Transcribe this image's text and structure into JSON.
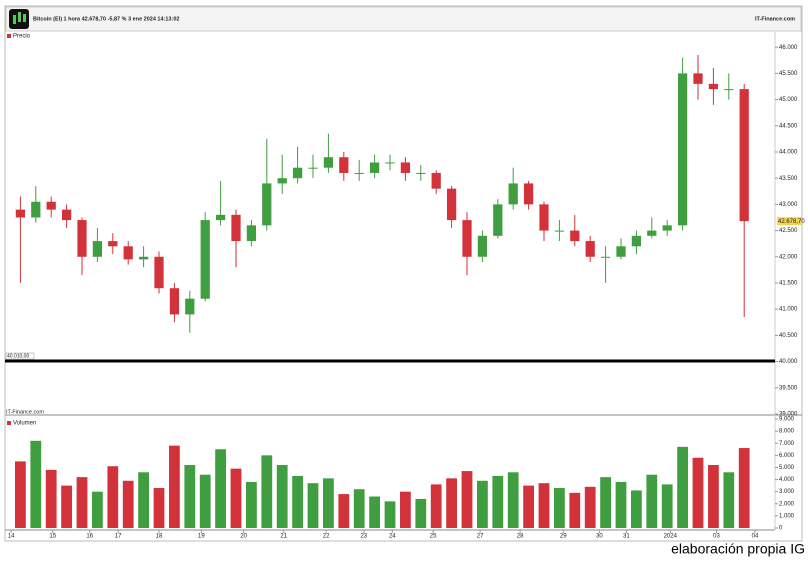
{
  "header": {
    "title": "Bitcoin (EI) 1 hora 42.678,70 -5,87 % 3 ene 2024 14:13:02",
    "source": "IT-Finance.com"
  },
  "chart_data": [
    {
      "type": "candlestick",
      "legend": "Precio",
      "up_color": "#3f9e3f",
      "down_color": "#d2323a",
      "x": [
        2,
        4,
        6,
        8,
        10,
        12,
        14,
        16,
        18,
        20,
        22,
        24,
        26,
        28,
        30,
        32,
        34,
        36,
        38,
        40,
        42,
        44,
        46,
        48,
        50,
        52,
        54,
        56,
        58,
        60,
        62,
        64,
        66,
        68,
        70,
        72,
        74,
        76,
        78,
        80,
        82,
        84,
        86,
        88,
        90,
        92,
        94,
        96
      ],
      "open": [
        42900,
        42750,
        43050,
        42900,
        42700,
        42000,
        42300,
        42200,
        41950,
        42000,
        41400,
        40900,
        41200,
        42700,
        42800,
        42300,
        42600,
        43400,
        43500,
        43700,
        43700,
        43900,
        43600,
        43600,
        43800,
        43800,
        43600,
        43600,
        43300,
        42700,
        42000,
        42400,
        43000,
        43400,
        43000,
        42500,
        42500,
        42300,
        42000,
        42000,
        42200,
        42400,
        42500,
        42600,
        45500,
        45300,
        45200,
        45200
      ],
      "high": [
        43150,
        43350,
        43150,
        43000,
        42750,
        42550,
        42450,
        42300,
        42200,
        42100,
        41500,
        41350,
        42850,
        43450,
        42900,
        42700,
        44250,
        43950,
        44100,
        43950,
        44350,
        44000,
        43850,
        43950,
        43950,
        43900,
        43750,
        43650,
        43350,
        42850,
        42500,
        43100,
        43700,
        43450,
        43050,
        42700,
        42800,
        42400,
        42200,
        42350,
        42500,
        42750,
        42700,
        45800,
        45850,
        45600,
        45500,
        45300
      ],
      "low": [
        41500,
        42650,
        42750,
        42550,
        41650,
        41900,
        42050,
        41850,
        41800,
        41300,
        40750,
        40550,
        41150,
        42600,
        41800,
        42200,
        42500,
        43200,
        43400,
        43500,
        43600,
        43450,
        43450,
        43500,
        43650,
        43450,
        43450,
        43200,
        42550,
        41650,
        41900,
        42350,
        42900,
        42900,
        42300,
        42300,
        42200,
        41900,
        41500,
        41950,
        42050,
        42350,
        42400,
        42500,
        45000,
        44900,
        45000,
        40850
      ],
      "close": [
        42750,
        43050,
        42900,
        42700,
        42000,
        42300,
        42200,
        41950,
        42000,
        41400,
        40900,
        41200,
        42700,
        42800,
        42300,
        42600,
        43400,
        43500,
        43700,
        43700,
        43900,
        43600,
        43600,
        43800,
        43800,
        43600,
        43600,
        43300,
        42700,
        42000,
        42400,
        43000,
        43400,
        43000,
        42500,
        42500,
        42300,
        42000,
        42000,
        42200,
        42400,
        42500,
        42600,
        45500,
        45300,
        45200,
        45200,
        42680
      ],
      "xlim": [
        0,
        100
      ],
      "xticks": [
        {
          "value": 0.8,
          "label": "14"
        },
        {
          "value": 6.2,
          "label": "15"
        },
        {
          "value": 11,
          "label": "16"
        },
        {
          "value": 14.7,
          "label": "17"
        },
        {
          "value": 20,
          "label": "18"
        },
        {
          "value": 25.5,
          "label": "19"
        },
        {
          "value": 31,
          "label": "20"
        },
        {
          "value": 36.2,
          "label": "21"
        },
        {
          "value": 41.7,
          "label": "22"
        },
        {
          "value": 46.6,
          "label": "23"
        },
        {
          "value": 50.3,
          "label": "24"
        },
        {
          "value": 55.6,
          "label": "25"
        },
        {
          "value": 61.7,
          "label": "27"
        },
        {
          "value": 66.9,
          "label": "28"
        },
        {
          "value": 72.5,
          "label": "29"
        },
        {
          "value": 77.2,
          "label": "30"
        },
        {
          "value": 80.7,
          "label": "31"
        },
        {
          "value": 86.4,
          "label": "2024"
        },
        {
          "value": 92.4,
          "label": "03"
        },
        {
          "value": 97.4,
          "label": "04"
        }
      ],
      "ylim": [
        38980,
        46290
      ],
      "yticks": [
        {
          "value": 39000,
          "label": "39.000"
        },
        {
          "value": 39500,
          "label": "39.500"
        },
        {
          "value": 40000,
          "label": "40.000"
        },
        {
          "value": 40500,
          "label": "40.500"
        },
        {
          "value": 41000,
          "label": "41.000"
        },
        {
          "value": 41500,
          "label": "41.500"
        },
        {
          "value": 42000,
          "label": "42.000"
        },
        {
          "value": 42500,
          "label": "42.500"
        },
        {
          "value": 43000,
          "label": "43.000"
        },
        {
          "value": 43500,
          "label": "43.500"
        },
        {
          "value": 44000,
          "label": "44.000"
        },
        {
          "value": 44500,
          "label": "44.500"
        },
        {
          "value": 45000,
          "label": "45.000"
        },
        {
          "value": 45500,
          "label": "45.500"
        },
        {
          "value": 46000,
          "label": "46.000"
        }
      ],
      "last_price": {
        "value": 42678.7,
        "label": "42.678,70"
      },
      "reference_line": {
        "value": 40010,
        "label": "40.010,00"
      },
      "watermark": "IT-Finance.com"
    },
    {
      "type": "bar",
      "legend": "Volumen",
      "x": [
        2,
        4,
        6,
        8,
        10,
        12,
        14,
        16,
        18,
        20,
        22,
        24,
        26,
        28,
        30,
        32,
        34,
        36,
        38,
        40,
        42,
        44,
        46,
        48,
        50,
        52,
        54,
        56,
        58,
        60,
        62,
        64,
        66,
        68,
        70,
        72,
        74,
        76,
        78,
        80,
        82,
        84,
        86,
        88,
        90,
        92,
        94,
        96
      ],
      "values": [
        5500,
        7200,
        4800,
        3500,
        4200,
        3000,
        5100,
        3900,
        4600,
        3300,
        6800,
        5200,
        4400,
        6500,
        4900,
        3800,
        6000,
        5200,
        4300,
        3700,
        4100,
        2800,
        3200,
        2600,
        2200,
        3000,
        2400,
        3600,
        4100,
        4700,
        3900,
        4300,
        4600,
        3500,
        3700,
        3300,
        2900,
        3400,
        4200,
        3800,
        3100,
        4400,
        3600,
        6700,
        5800,
        5200,
        4600,
        6600
      ],
      "ylim": [
        0,
        9000
      ],
      "yticks": [
        0,
        {
          "value": 1000,
          "label": "1.000"
        },
        {
          "value": 2000,
          "label": "2.000"
        },
        {
          "value": 3000,
          "label": "3.000"
        },
        {
          "value": 4000,
          "label": "4.000"
        },
        {
          "value": 5000,
          "label": "5.000"
        },
        {
          "value": 6000,
          "label": "6.000"
        },
        {
          "value": 7000,
          "label": "7.000"
        },
        {
          "value": 8000,
          "label": "8.000"
        },
        {
          "value": 9000,
          "label": "9.000"
        }
      ]
    }
  ],
  "footer": "elaboración propia IG"
}
